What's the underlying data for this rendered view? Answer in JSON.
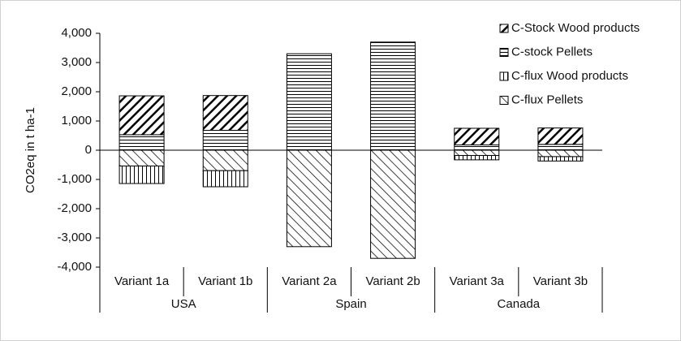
{
  "chart_data": {
    "type": "stacked-bar",
    "y_label": "CO2eq in t ha-1",
    "categories": [
      "Variant 1a",
      "Variant 1b",
      "Variant 2a",
      "Variant 2b",
      "Variant 3a",
      "Variant 3b"
    ],
    "groups": [
      "USA",
      "Spain",
      "Canada"
    ],
    "series": [
      {
        "name": "C-Stock Wood products",
        "color": "#000000",
        "pattern": "diagonal-bold",
        "values": [
          1330,
          1190,
          0,
          0,
          570,
          560
        ]
      },
      {
        "name": "C-stock Pellets",
        "color": "#000000",
        "pattern": "horizontal",
        "values": [
          530,
          680,
          3300,
          3700,
          180,
          200
        ]
      },
      {
        "name": "C-flux Wood products",
        "color": "#000000",
        "pattern": "vertical",
        "values": [
          -600,
          -550,
          0,
          0,
          -150,
          -150
        ]
      },
      {
        "name": "C-flux Pellets",
        "color": "#000000",
        "pattern": "diagonal-back",
        "values": [
          -540,
          -700,
          -3300,
          -3700,
          -180,
          -220
        ]
      }
    ],
    "ylim": [
      -4000,
      4000
    ],
    "yticks": [
      {
        "value": 4000,
        "label": "4,000"
      },
      {
        "value": 3000,
        "label": "3,000"
      },
      {
        "value": 2000,
        "label": "2,000"
      },
      {
        "value": 1000,
        "label": "1,000"
      },
      0,
      {
        "value": -1000,
        "label": "-1,000"
      },
      {
        "value": -2000,
        "label": "-2,000"
      },
      {
        "value": -3000,
        "label": "-3,000"
      },
      {
        "value": -4000,
        "label": "-4,000"
      }
    ],
    "legend": "top-right"
  }
}
